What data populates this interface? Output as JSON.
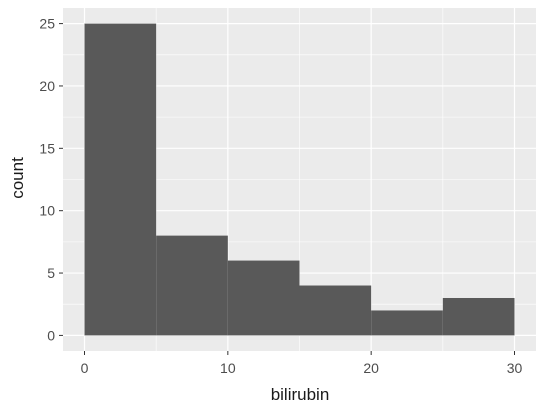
{
  "chart_data": {
    "type": "bar",
    "bins": [
      {
        "x0": 0,
        "x1": 5,
        "count": 25
      },
      {
        "x0": 5,
        "x1": 10,
        "count": 8
      },
      {
        "x0": 10,
        "x1": 15,
        "count": 6
      },
      {
        "x0": 15,
        "x1": 20,
        "count": 4
      },
      {
        "x0": 20,
        "x1": 25,
        "count": 2
      },
      {
        "x0": 25,
        "x1": 30,
        "count": 3
      }
    ],
    "xlabel": "bilirubin",
    "ylabel": "count",
    "x_ticks": [
      "0",
      "10",
      "20",
      "30"
    ],
    "y_ticks": [
      "0",
      "5",
      "10",
      "15",
      "20",
      "25"
    ],
    "xlim": [
      -1.5,
      31.5
    ],
    "ylim": [
      -1.25,
      26.25
    ],
    "grid": true,
    "colors": {
      "panel_background": "#ebebeb",
      "bar_fill": "#595959",
      "grid": "#ffffff"
    }
  }
}
